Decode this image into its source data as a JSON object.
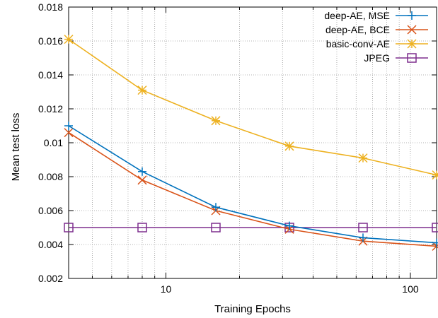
{
  "chart_data": {
    "type": "line",
    "xlabel": "Training Epochs",
    "ylabel": "Mean test loss",
    "xscale": "log",
    "xlim": [
      4,
      128
    ],
    "ylim": [
      0.002,
      0.018
    ],
    "grid": true,
    "legend_position": "top-right",
    "x_tick_labels": [
      {
        "value": 10,
        "label": "10"
      },
      {
        "value": 100,
        "label": "100"
      }
    ],
    "y_tick_labels": [
      {
        "value": 0.002,
        "label": "0.002"
      },
      {
        "value": 0.004,
        "label": "0.004"
      },
      {
        "value": 0.006,
        "label": "0.006"
      },
      {
        "value": 0.008,
        "label": "0.008"
      },
      {
        "value": 0.01,
        "label": "0.01"
      },
      {
        "value": 0.012,
        "label": "0.012"
      },
      {
        "value": 0.014,
        "label": "0.014"
      },
      {
        "value": 0.016,
        "label": "0.016"
      },
      {
        "value": 0.018,
        "label": "0.018"
      }
    ],
    "x": [
      4,
      8,
      16,
      32,
      64,
      128
    ],
    "series": [
      {
        "name": "deep-AE, MSE",
        "color": "#0072bd",
        "marker": "plus",
        "values": [
          0.011,
          0.0083,
          0.0062,
          0.0051,
          0.0044,
          0.0041
        ]
      },
      {
        "name": "deep-AE, BCE",
        "color": "#d95319",
        "marker": "cross",
        "values": [
          0.0106,
          0.0078,
          0.006,
          0.0049,
          0.0042,
          0.0039
        ]
      },
      {
        "name": "basic-conv-AE",
        "color": "#edb120",
        "marker": "star",
        "values": [
          0.0161,
          0.0131,
          0.0113,
          0.0098,
          0.0091,
          0.0081
        ]
      },
      {
        "name": "JPEG",
        "color": "#7e2f8e",
        "marker": "square",
        "values": [
          0.005,
          0.005,
          0.005,
          0.005,
          0.005,
          0.005
        ]
      }
    ]
  }
}
